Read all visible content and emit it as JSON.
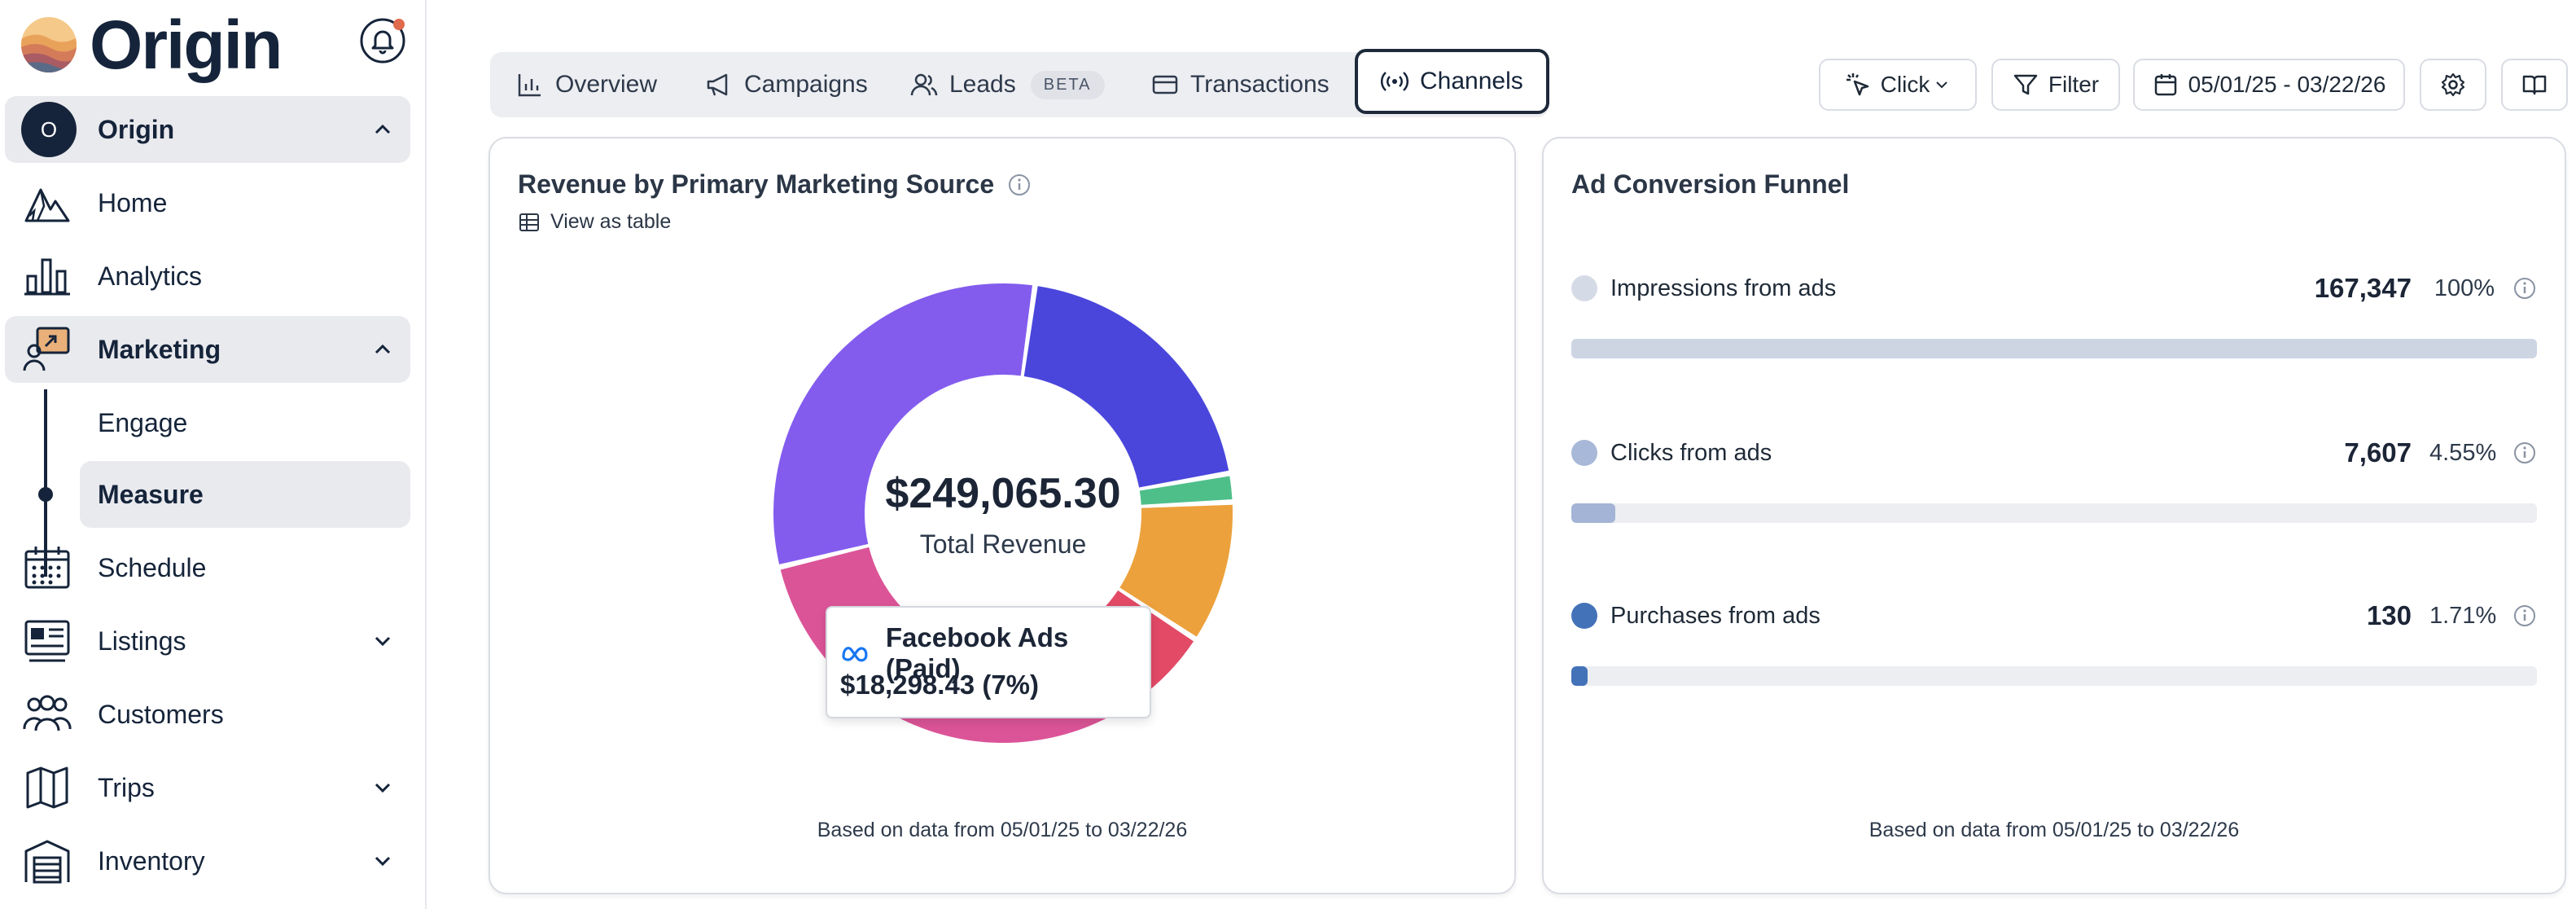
{
  "brand": {
    "name": "Origin"
  },
  "sidebar": {
    "org": {
      "initial": "O",
      "label": "Origin"
    },
    "items": [
      {
        "label": "Home",
        "icon": "mountain-icon"
      },
      {
        "label": "Analytics",
        "icon": "bar-chart-icon"
      },
      {
        "label": "Marketing",
        "icon": "marketing-icon"
      },
      {
        "label": "Schedule",
        "icon": "calendar-icon"
      },
      {
        "label": "Listings",
        "icon": "listings-icon"
      },
      {
        "label": "Customers",
        "icon": "users-icon"
      },
      {
        "label": "Trips",
        "icon": "map-icon"
      },
      {
        "label": "Inventory",
        "icon": "warehouse-icon"
      }
    ],
    "marketing_sub": [
      {
        "label": "Engage"
      },
      {
        "label": "Measure"
      }
    ]
  },
  "tabs": [
    {
      "label": "Overview"
    },
    {
      "label": "Campaigns"
    },
    {
      "label": "Leads",
      "badge": "BETA"
    },
    {
      "label": "Transactions"
    },
    {
      "label": "Channels"
    }
  ],
  "toolbar": {
    "click_label": "Click",
    "filter_label": "Filter",
    "date_range": "05/01/25 - 03/22/26"
  },
  "revenue_card": {
    "title": "Revenue by Primary Marketing Source",
    "view_table": "View as table",
    "total_value": "$249,065.30",
    "total_label": "Total Revenue",
    "tooltip_name": "Facebook Ads (Paid)",
    "tooltip_value": "$18,298.43 (7%)",
    "footnote": "Based on data from 05/01/25 to 03/22/26"
  },
  "chart_data": {
    "type": "pie",
    "slices": [
      {
        "value": 20,
        "color": "#4a46dc"
      },
      {
        "value": 2,
        "color": "#4fbf8a"
      },
      {
        "value": 10,
        "color": "#eca13c"
      },
      {
        "value": 7,
        "color": "#e24a66"
      },
      {
        "value": 30,
        "color": "#dc5498"
      },
      {
        "value": 31,
        "color": "#835cee"
      }
    ]
  },
  "funnel_card": {
    "title": "Ad Conversion Funnel",
    "rows": [
      {
        "label": "Impressions from ads",
        "count": "167,347",
        "pct": "100%",
        "fill": 1.0,
        "color": "#cdd5e3",
        "dot": "#d5dbe6"
      },
      {
        "label": "Clicks from ads",
        "count": "7,607",
        "pct": "4.55%",
        "fill": 0.0455,
        "color": "#a3b4d6",
        "dot": "#a8b8d8"
      },
      {
        "label": "Purchases from ads",
        "count": "130",
        "pct": "1.71%",
        "fill": 0.0171,
        "color": "#4472b8",
        "dot": "#4472b8"
      }
    ],
    "footnote": "Based on data from 05/01/25 to 03/22/26"
  }
}
